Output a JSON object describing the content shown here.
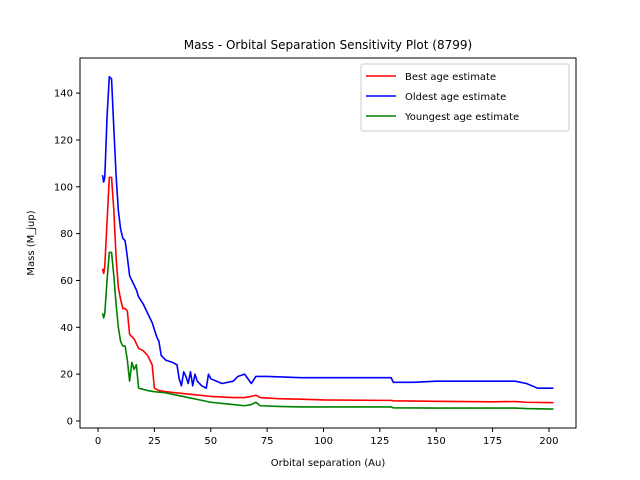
{
  "chart_data": {
    "type": "line",
    "title": "Mass - Orbital Separation Sensitivity Plot (8799)",
    "xlabel": "Orbital separation (Au)",
    "ylabel": "Mass (M_jup)",
    "xlim": [
      -8,
      212
    ],
    "ylim": [
      -3,
      155
    ],
    "xticks": [
      0,
      25,
      50,
      75,
      100,
      125,
      150,
      175,
      200
    ],
    "yticks": [
      0,
      20,
      40,
      60,
      80,
      100,
      120,
      140
    ],
    "grid": false,
    "legend_position": "top-right",
    "series": [
      {
        "name": "Best age estimate",
        "color": "#ff0000",
        "points": [
          [
            2,
            65
          ],
          [
            2.5,
            63
          ],
          [
            3,
            66
          ],
          [
            4,
            85
          ],
          [
            5,
            104
          ],
          [
            6,
            104
          ],
          [
            7,
            90
          ],
          [
            8,
            70
          ],
          [
            9,
            57
          ],
          [
            10,
            52
          ],
          [
            11,
            48
          ],
          [
            12,
            48
          ],
          [
            13,
            47
          ],
          [
            14,
            37
          ],
          [
            15,
            36
          ],
          [
            16,
            35
          ],
          [
            17,
            33
          ],
          [
            18,
            31
          ],
          [
            20,
            30
          ],
          [
            22,
            28
          ],
          [
            24,
            24
          ],
          [
            25,
            14
          ],
          [
            27,
            13
          ],
          [
            30,
            12.5
          ],
          [
            35,
            12
          ],
          [
            40,
            11.5
          ],
          [
            50,
            10.5
          ],
          [
            60,
            10
          ],
          [
            65,
            10
          ],
          [
            68,
            10.5
          ],
          [
            70,
            11
          ],
          [
            72,
            10
          ],
          [
            80,
            9.5
          ],
          [
            90,
            9.3
          ],
          [
            100,
            9
          ],
          [
            125,
            8.8
          ],
          [
            130,
            8.8
          ],
          [
            131,
            8.6
          ],
          [
            150,
            8.4
          ],
          [
            175,
            8.2
          ],
          [
            185,
            8.3
          ],
          [
            190,
            8
          ],
          [
            202,
            7.8
          ]
        ]
      },
      {
        "name": "Oldest age estimate",
        "color": "#0000ff",
        "points": [
          [
            2,
            105
          ],
          [
            2.5,
            102
          ],
          [
            3,
            104
          ],
          [
            4,
            130
          ],
          [
            5,
            147
          ],
          [
            6,
            146
          ],
          [
            7,
            125
          ],
          [
            8,
            105
          ],
          [
            9,
            90
          ],
          [
            10,
            82
          ],
          [
            11,
            78
          ],
          [
            12,
            77
          ],
          [
            13,
            70
          ],
          [
            14,
            62
          ],
          [
            15,
            60
          ],
          [
            16,
            58
          ],
          [
            17,
            56
          ],
          [
            18,
            53
          ],
          [
            20,
            50
          ],
          [
            22,
            46
          ],
          [
            24,
            42
          ],
          [
            26,
            36
          ],
          [
            27,
            34
          ],
          [
            28,
            28
          ],
          [
            30,
            26
          ],
          [
            33,
            25
          ],
          [
            35,
            24
          ],
          [
            36,
            18
          ],
          [
            37,
            15
          ],
          [
            38,
            21
          ],
          [
            39,
            19
          ],
          [
            40,
            16
          ],
          [
            41,
            21
          ],
          [
            42,
            15
          ],
          [
            43,
            20
          ],
          [
            44,
            17
          ],
          [
            46,
            15
          ],
          [
            48,
            14
          ],
          [
            49,
            20
          ],
          [
            50,
            18
          ],
          [
            55,
            16
          ],
          [
            60,
            17
          ],
          [
            62,
            19
          ],
          [
            65,
            20
          ],
          [
            68,
            16
          ],
          [
            70,
            19
          ],
          [
            75,
            19
          ],
          [
            90,
            18.5
          ],
          [
            100,
            18.5
          ],
          [
            130,
            18.5
          ],
          [
            131,
            16.5
          ],
          [
            140,
            16.5
          ],
          [
            150,
            17
          ],
          [
            170,
            17
          ],
          [
            180,
            17
          ],
          [
            185,
            17
          ],
          [
            190,
            16
          ],
          [
            195,
            14
          ],
          [
            202,
            14
          ]
        ]
      },
      {
        "name": "Youngest age estimate",
        "color": "#008000",
        "points": [
          [
            2,
            46
          ],
          [
            2.5,
            44
          ],
          [
            3,
            46
          ],
          [
            4,
            60
          ],
          [
            5,
            72
          ],
          [
            6,
            72
          ],
          [
            7,
            62
          ],
          [
            8,
            50
          ],
          [
            9,
            40
          ],
          [
            10,
            34
          ],
          [
            11,
            32
          ],
          [
            12,
            32
          ],
          [
            13,
            26
          ],
          [
            14,
            17
          ],
          [
            15,
            25
          ],
          [
            16,
            22
          ],
          [
            17,
            24
          ],
          [
            18,
            14
          ],
          [
            22,
            13
          ],
          [
            25,
            12.5
          ],
          [
            30,
            12
          ],
          [
            35,
            11
          ],
          [
            40,
            10
          ],
          [
            45,
            9
          ],
          [
            50,
            8
          ],
          [
            55,
            7.5
          ],
          [
            60,
            7
          ],
          [
            65,
            6.5
          ],
          [
            68,
            7
          ],
          [
            70,
            8
          ],
          [
            72,
            6.5
          ],
          [
            80,
            6.2
          ],
          [
            90,
            6
          ],
          [
            100,
            6
          ],
          [
            130,
            6
          ],
          [
            131,
            5.6
          ],
          [
            150,
            5.5
          ],
          [
            175,
            5.5
          ],
          [
            185,
            5.5
          ],
          [
            190,
            5.3
          ],
          [
            202,
            5.1
          ]
        ]
      }
    ]
  }
}
